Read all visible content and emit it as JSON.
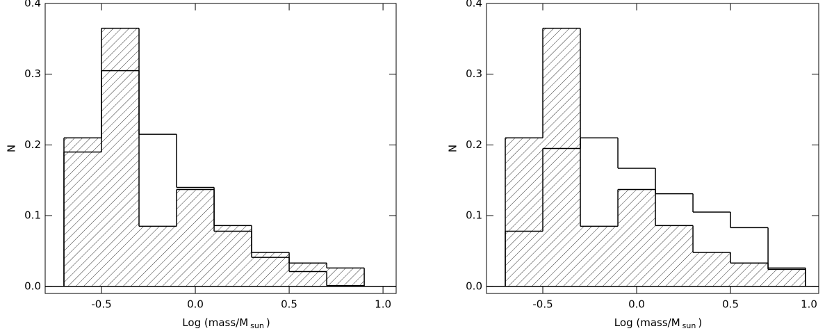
{
  "chart_data": [
    {
      "type": "histogram",
      "x_label": "Log (mass/M",
      "x_label_sub": "sun",
      "x_label_end": ")",
      "y_label": "N",
      "bins": [
        -0.7,
        -0.5,
        -0.3,
        -0.1,
        0.1,
        0.3,
        0.5,
        0.7,
        0.9
      ],
      "series": [
        {
          "color": "#000000",
          "hatched": true,
          "values": [
            0.21,
            0.365,
            0.085,
            0.137,
            0.086,
            0.048,
            0.033,
            0.026
          ]
        },
        {
          "color": "#000000",
          "hatched": false,
          "values": [
            0.19,
            0.305,
            0.215,
            0.14,
            0.078,
            0.041,
            0.021,
            0.001
          ]
        }
      ],
      "xlim": [
        -0.8,
        1.07
      ],
      "ylim": [
        -0.01,
        0.4
      ],
      "xticks": [
        -0.5,
        {
          "value": 0,
          "label": "0.0"
        },
        0.5,
        {
          "value": 1,
          "label": "1.0"
        }
      ],
      "yticks": [
        {
          "value": 0,
          "label": "0.0"
        },
        0.1,
        0.2,
        0.3,
        0.4
      ]
    },
    {
      "type": "histogram",
      "x_label": "Log (mass/M",
      "x_label_sub": "sun",
      "x_label_end": ")",
      "y_label": "N",
      "bins": [
        -0.7,
        -0.5,
        -0.3,
        -0.1,
        0.1,
        0.3,
        0.5,
        0.7,
        0.9
      ],
      "series": [
        {
          "color": "#000000",
          "hatched": true,
          "values": [
            0.21,
            0.365,
            0.085,
            0.137,
            0.086,
            0.048,
            0.033,
            0.024
          ]
        },
        {
          "color": "#000000",
          "hatched": false,
          "values": [
            0.078,
            0.195,
            0.21,
            0.167,
            0.131,
            0.105,
            0.083,
            0.026
          ]
        }
      ],
      "xlim": [
        -0.8,
        0.97
      ],
      "ylim": [
        -0.01,
        0.4
      ],
      "xticks": [
        -0.5,
        {
          "value": 0,
          "label": "0.0"
        },
        0.5,
        {
          "value": 1,
          "label": "1.0"
        }
      ],
      "yticks": [
        {
          "value": 0,
          "label": "0.0"
        },
        0.1,
        0.2,
        0.3,
        0.4
      ]
    }
  ]
}
